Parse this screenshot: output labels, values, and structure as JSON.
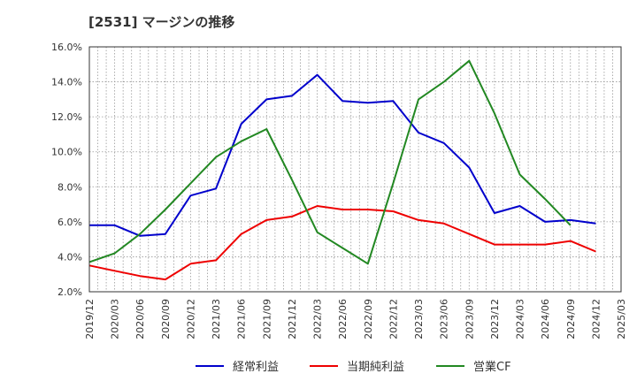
{
  "chart_data": {
    "type": "line",
    "title": "[2531]  マージンの推移",
    "xlabel": "",
    "ylabel": "",
    "ylim": [
      2.0,
      16.0
    ],
    "y_ticks": [
      "2.0%",
      "4.0%",
      "6.0%",
      "8.0%",
      "10.0%",
      "12.0%",
      "14.0%",
      "16.0%"
    ],
    "x": [
      "2019/12",
      "2020/03",
      "2020/06",
      "2020/09",
      "2020/12",
      "2021/03",
      "2021/06",
      "2021/09",
      "2021/12",
      "2022/03",
      "2022/06",
      "2022/09",
      "2022/12",
      "2023/03",
      "2023/06",
      "2023/09",
      "2023/12",
      "2024/03",
      "2024/06",
      "2024/09",
      "2024/12",
      "2025/03"
    ],
    "grid": true,
    "legend_position": "bottom",
    "series": [
      {
        "name": "経常利益",
        "color": "#0000cc",
        "values": [
          5.8,
          5.8,
          5.2,
          5.3,
          7.5,
          7.9,
          11.6,
          13.0,
          13.2,
          14.4,
          12.9,
          12.8,
          12.9,
          11.1,
          10.5,
          9.1,
          6.5,
          6.9,
          6.0,
          6.1,
          5.9,
          null
        ]
      },
      {
        "name": "当期純利益",
        "color": "#ee0000",
        "values": [
          3.5,
          3.2,
          2.9,
          2.7,
          3.6,
          3.8,
          5.3,
          6.1,
          6.3,
          6.9,
          6.7,
          6.7,
          6.6,
          6.1,
          5.9,
          5.3,
          4.7,
          4.7,
          4.7,
          4.9,
          4.3,
          null
        ]
      },
      {
        "name": "営業CF",
        "color": "#228822",
        "values": [
          3.7,
          4.2,
          5.3,
          6.7,
          8.2,
          9.7,
          10.6,
          11.3,
          8.4,
          5.4,
          4.5,
          3.6,
          8.2,
          13.0,
          14.0,
          15.2,
          12.2,
          8.7,
          7.3,
          5.8,
          null,
          null
        ]
      }
    ]
  }
}
